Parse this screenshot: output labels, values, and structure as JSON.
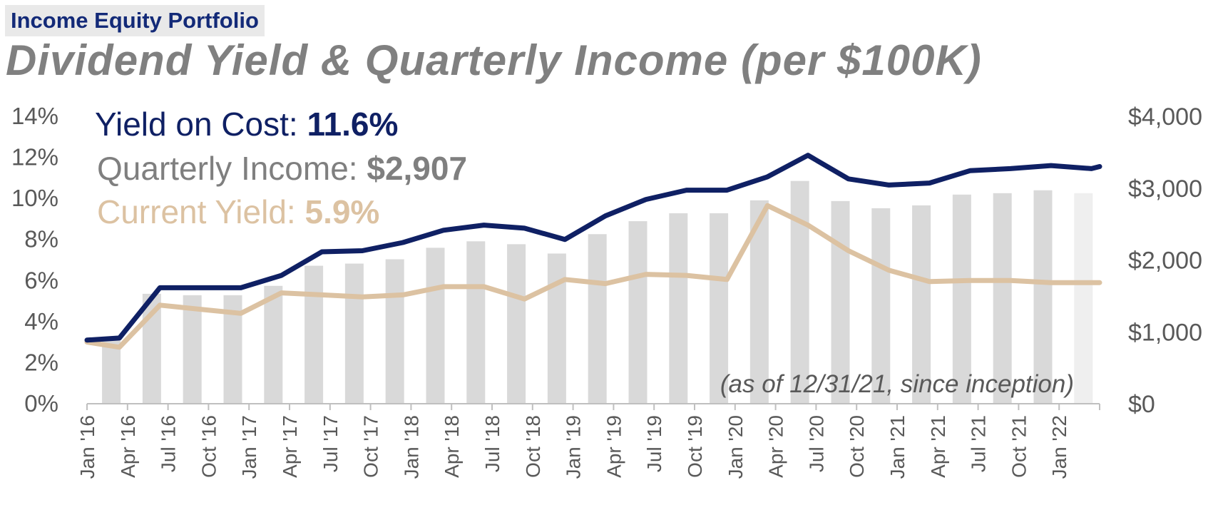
{
  "header": {
    "tag": "Income Equity Portfolio",
    "title": "Dividend Yield & Quarterly Income (per $100K)"
  },
  "colors": {
    "yield_on_cost": "#0f2064",
    "current_yield": "#dcc2a2",
    "bars": "#d9d9d9",
    "bar_last": "#efefef",
    "axis_text": "#595959",
    "title_gray": "#808080",
    "tag_text": "#132a78",
    "tag_bg": "#e9e9e9"
  },
  "chart_data": {
    "type": "bar+line",
    "annotations": {
      "yoc_label": "Yield on Cost: ",
      "yoc_value": "11.6%",
      "qi_label": "Quarterly Income: ",
      "qi_value": "$2,907",
      "cy_label": "Current Yield: ",
      "cy_value": "5.9%",
      "note": "(as of 12/31/21, since inception)"
    },
    "x_tick_labels": [
      "Jan '16",
      "Apr '16",
      "Jul '16",
      "Oct '16",
      "Jan '17",
      "Apr '17",
      "Jul '17",
      "Oct '17",
      "Jan '18",
      "Apr '18",
      "Jul '18",
      "Oct '18",
      "Jan '19",
      "Apr '19",
      "Jul '19",
      "Oct '19",
      "Jan '20",
      "Apr '20",
      "Jul '20",
      "Oct '20",
      "Jan '21",
      "Apr '21",
      "Jul '21",
      "Oct '21",
      "Jan '22"
    ],
    "y_left": {
      "min": 0,
      "max": 14,
      "ticks": [
        "0%",
        "2%",
        "4%",
        "6%",
        "8%",
        "10%",
        "12%",
        "14%"
      ]
    },
    "y_right": {
      "min": 0,
      "max": 4000,
      "ticks": [
        "$0",
        "$1,000",
        "$2,000",
        "$3,000",
        "$4,000"
      ]
    },
    "series": [
      {
        "name": "Quarterly Income",
        "kind": "bar",
        "axis": "right",
        "x": [
          0.6,
          1.6,
          2.6,
          3.6,
          4.6,
          5.6,
          6.6,
          7.6,
          8.6,
          9.6,
          10.6,
          11.6,
          12.6,
          13.6,
          14.6,
          15.6,
          16.6,
          17.6,
          18.6,
          19.6,
          20.6,
          21.6,
          22.6,
          23.6,
          24.6
        ],
        "values": [
          880,
          1530,
          1510,
          1510,
          1640,
          1920,
          1950,
          2010,
          2170,
          2260,
          2220,
          2090,
          2360,
          2540,
          2650,
          2650,
          2830,
          3100,
          2820,
          2720,
          2760,
          2910,
          2930,
          2970,
          2930
        ]
      },
      {
        "name": "Yield on Cost",
        "kind": "line",
        "axis": "left",
        "x": [
          0,
          0.8,
          1.8,
          2.8,
          3.8,
          4.8,
          5.8,
          6.8,
          7.8,
          8.8,
          9.8,
          10.8,
          11.8,
          12.8,
          13.8,
          14.8,
          15.8,
          16.8,
          17.8,
          18.8,
          19.8,
          20.8,
          21.8,
          22.8,
          23.8,
          24.8,
          25
        ],
        "values": [
          3.1,
          3.2,
          5.65,
          5.65,
          5.65,
          6.25,
          7.4,
          7.45,
          7.85,
          8.45,
          8.7,
          8.55,
          8.0,
          9.15,
          9.95,
          10.4,
          10.4,
          11.05,
          12.1,
          10.95,
          10.65,
          10.75,
          11.35,
          11.45,
          11.6,
          11.45,
          11.55
        ]
      },
      {
        "name": "Current Yield",
        "kind": "line",
        "axis": "left",
        "x": [
          0,
          0.8,
          1.8,
          2.8,
          3.8,
          4.8,
          5.8,
          6.8,
          7.8,
          8.8,
          9.8,
          10.8,
          11.8,
          12.8,
          13.8,
          14.8,
          15.8,
          16.8,
          17.8,
          18.8,
          19.8,
          20.8,
          21.8,
          22.8,
          23.8,
          24.8,
          25
        ],
        "values": [
          3.0,
          2.75,
          4.8,
          4.6,
          4.4,
          5.4,
          5.3,
          5.2,
          5.3,
          5.7,
          5.7,
          5.1,
          6.05,
          5.85,
          6.3,
          6.25,
          6.05,
          9.65,
          8.7,
          7.45,
          6.5,
          5.95,
          6.0,
          6.0,
          5.9,
          5.9,
          5.9
        ]
      }
    ]
  }
}
